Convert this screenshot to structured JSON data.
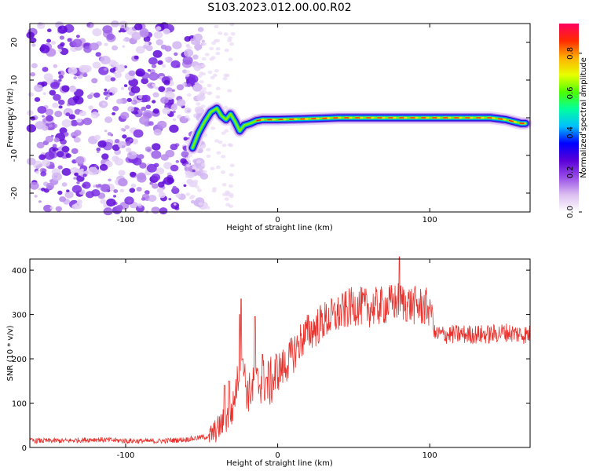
{
  "figure": {
    "title": "S103.2023.012.00.00.R02"
  },
  "chart_data": [
    {
      "type": "heatmap",
      "xlabel": "Height of straight line (km)",
      "ylabel": "Frequency (Hz)",
      "xlim": [
        -163,
        166
      ],
      "ylim": [
        -25,
        25
      ],
      "xticks": [
        -100,
        0,
        100
      ],
      "yticks": [
        -20,
        -10,
        0,
        10,
        20
      ],
      "grid": false,
      "colorbar": {
        "label": "Normalized spectral amplitude",
        "range": [
          0,
          0.95
        ],
        "ticks": [
          0.0,
          0.2,
          0.4,
          0.6,
          0.8
        ],
        "tick_labels": [
          "0.0",
          "0.2",
          "0.4",
          "0.6",
          "0.8"
        ],
        "colors": [
          "#ffffff",
          "#dcbff0",
          "#9a4fe8",
          "#5a00d8",
          "#0000ff",
          "#00bfff",
          "#00ff9f",
          "#4cff00",
          "#e8ff00",
          "#ffb000",
          "#ff2a00",
          "#ff0060"
        ]
      },
      "noise_region_x": [
        -163,
        -55
      ],
      "signal_ridge": {
        "x": [
          -56,
          -52,
          -48,
          -44,
          -40,
          -37,
          -34,
          -31,
          -28,
          -25,
          -22,
          -18,
          -14,
          -10,
          -5,
          0,
          20,
          40,
          60,
          80,
          100,
          120,
          140,
          150,
          160,
          163
        ],
        "y": [
          -8,
          -4,
          -1,
          1.5,
          2.5,
          0.5,
          -0.5,
          1,
          -1,
          -3.5,
          -2,
          -1.5,
          -0.8,
          -0.5,
          -0.5,
          -0.5,
          -0.3,
          0,
          0,
          0,
          0,
          0,
          0,
          -0.5,
          -1.5,
          -1.5
        ]
      }
    },
    {
      "type": "line",
      "xlabel": "Height of straight line (km)",
      "ylabel": "SNR (10 * v/v)",
      "xlim": [
        -163,
        166
      ],
      "ylim": [
        0,
        425
      ],
      "xticks": [
        -100,
        0,
        100
      ],
      "yticks": [
        0,
        100,
        200,
        300,
        400
      ],
      "grid": false,
      "series": [
        {
          "color": "#e8312c",
          "x": [
            -163,
            -140,
            -120,
            -100,
            -80,
            -60,
            -45,
            -40,
            -35,
            -30,
            -28,
            -25,
            -23,
            -20,
            -15,
            -10,
            -5,
            0,
            5,
            10,
            15,
            20,
            25,
            30,
            40,
            50,
            60,
            70,
            80,
            90,
            100,
            102,
            103,
            110,
            120,
            130,
            140,
            150,
            160,
            166
          ],
          "y": [
            15,
            15,
            18,
            15,
            14,
            18,
            25,
            40,
            60,
            80,
            120,
            180,
            190,
            120,
            140,
            150,
            145,
            170,
            185,
            210,
            240,
            260,
            270,
            285,
            300,
            320,
            315,
            320,
            330,
            320,
            315,
            300,
            255,
            255,
            255,
            255,
            255,
            260,
            255,
            255
          ]
        }
      ],
      "spikes": [
        {
          "x": -35,
          "y": 140
        },
        {
          "x": -32,
          "y": 150
        },
        {
          "x": -25,
          "y": 300
        },
        {
          "x": -24,
          "y": 335
        },
        {
          "x": -23,
          "y": 200
        },
        {
          "x": -15,
          "y": 295
        },
        {
          "x": -10,
          "y": 210
        },
        {
          "x": 80,
          "y": 430
        }
      ]
    }
  ]
}
